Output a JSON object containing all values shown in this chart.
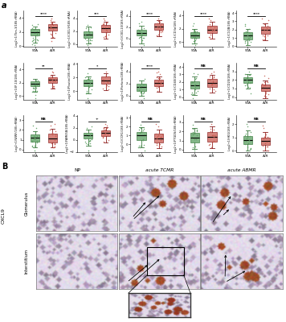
{
  "box_plots": [
    {
      "row": 0,
      "col": 0,
      "ylabel": "Log2+1(Tim-3/18S rRNA)",
      "sig": "****",
      "sta_q1": 1.5,
      "sta_med": 2.0,
      "sta_q3": 2.4,
      "sta_whislo": 0.5,
      "sta_whishi": 2.8,
      "sta_fliers_lo": [
        0.2,
        0.1
      ],
      "sta_fliers_hi": [
        3.0,
        3.1
      ],
      "ar_q1": 2.2,
      "ar_med": 2.7,
      "ar_q3": 3.1,
      "ar_whislo": 1.2,
      "ar_whishi": 3.5,
      "ar_fliers_lo": [
        0.7
      ],
      "ar_fliers_hi": [
        3.7,
        3.9
      ]
    },
    {
      "row": 0,
      "col": 1,
      "ylabel": "Log2+1(CXCL9/18S rRNA)",
      "sig": "***",
      "sta_q1": 1.0,
      "sta_med": 1.5,
      "sta_q3": 2.0,
      "sta_whislo": 0.1,
      "sta_whishi": 2.7,
      "sta_fliers_lo": [
        -0.2
      ],
      "sta_fliers_hi": [
        3.0
      ],
      "ar_q1": 1.8,
      "ar_med": 2.4,
      "ar_q3": 2.9,
      "ar_whislo": 0.8,
      "ar_whishi": 3.4,
      "ar_fliers_lo": [],
      "ar_fliers_hi": [
        3.7,
        3.9
      ]
    },
    {
      "row": 0,
      "col": 2,
      "ylabel": "Log2+1(CXCL10/18S rRNA)",
      "sig": "****",
      "sta_q1": 0.5,
      "sta_med": 1.0,
      "sta_q3": 1.6,
      "sta_whislo": -0.8,
      "sta_whishi": 2.2,
      "sta_fliers_lo": [
        -1.2
      ],
      "sta_fliers_hi": [
        2.7,
        3.0
      ],
      "ar_q1": 1.5,
      "ar_med": 2.1,
      "ar_q3": 2.7,
      "ar_whislo": 0.4,
      "ar_whishi": 3.2,
      "ar_fliers_lo": [],
      "ar_fliers_hi": [
        3.5
      ]
    },
    {
      "row": 0,
      "col": 3,
      "ylabel": "Log2+1(CD3e/18S rRNA)",
      "sig": "****",
      "sta_q1": 0.6,
      "sta_med": 1.0,
      "sta_q3": 1.5,
      "sta_whislo": -0.2,
      "sta_whishi": 2.0,
      "sta_fliers_lo": [
        -0.5
      ],
      "sta_fliers_hi": [
        2.4,
        2.8
      ],
      "ar_q1": 1.4,
      "ar_med": 1.9,
      "ar_q3": 2.4,
      "ar_whislo": 0.5,
      "ar_whishi": 3.0,
      "ar_fliers_lo": [],
      "ar_fliers_hi": [
        3.3,
        3.5
      ]
    },
    {
      "row": 0,
      "col": 4,
      "ylabel": "Log2+1(C1QB/18S rRNA)",
      "sig": "****",
      "sta_q1": 0.8,
      "sta_med": 1.3,
      "sta_q3": 1.7,
      "sta_whislo": 0.1,
      "sta_whishi": 2.1,
      "sta_fliers_lo": [],
      "sta_fliers_hi": [
        2.5,
        2.7
      ],
      "ar_q1": 1.5,
      "ar_med": 2.0,
      "ar_q3": 2.4,
      "ar_whislo": 0.7,
      "ar_whishi": 2.8,
      "ar_fliers_lo": [],
      "ar_fliers_hi": [
        3.1,
        3.3
      ]
    },
    {
      "row": 1,
      "col": 0,
      "ylabel": "Log2+1(IP-10/18S rRNA)",
      "sig": "**",
      "sta_q1": 1.5,
      "sta_med": 1.9,
      "sta_q3": 2.2,
      "sta_whislo": 0.6,
      "sta_whishi": 2.6,
      "sta_fliers_lo": [
        -0.3,
        0.2
      ],
      "sta_fliers_hi": [],
      "ar_q1": 2.0,
      "ar_med": 2.4,
      "ar_q3": 2.8,
      "ar_whislo": 1.1,
      "ar_whishi": 3.2,
      "ar_fliers_lo": [],
      "ar_fliers_hi": [
        3.5,
        3.7
      ]
    },
    {
      "row": 1,
      "col": 1,
      "ylabel": "Log2+1(Plastin/18S rRNA)",
      "sig": "*",
      "sta_q1": 0.7,
      "sta_med": 1.2,
      "sta_q3": 1.7,
      "sta_whislo": -0.3,
      "sta_whishi": 2.2,
      "sta_fliers_lo": [
        -1.0
      ],
      "sta_fliers_hi": [
        2.6
      ],
      "ar_q1": 1.1,
      "ar_med": 1.6,
      "ar_q3": 2.1,
      "ar_whislo": 0.2,
      "ar_whishi": 2.6,
      "ar_fliers_lo": [],
      "ar_fliers_hi": [
        2.9
      ]
    },
    {
      "row": 1,
      "col": 2,
      "ylabel": "Log2+1(Perforin/18S rRNA)",
      "sig": "****",
      "sta_q1": 0.8,
      "sta_med": 1.4,
      "sta_q3": 1.9,
      "sta_whislo": 0.0,
      "sta_whishi": 2.5,
      "sta_fliers_lo": [
        -0.4
      ],
      "sta_fliers_hi": [
        2.8
      ],
      "ar_q1": 1.6,
      "ar_med": 2.1,
      "ar_q3": 2.6,
      "ar_whislo": 0.6,
      "ar_whishi": 3.1,
      "ar_fliers_lo": [],
      "ar_fliers_hi": [
        3.5,
        3.8,
        4.0
      ]
    },
    {
      "row": 1,
      "col": 3,
      "ylabel": "Log2+1(CD40/18S rRNA)",
      "sig": "NS",
      "sta_q1": 1.1,
      "sta_med": 1.6,
      "sta_q3": 2.1,
      "sta_whislo": 0.3,
      "sta_whishi": 2.7,
      "sta_fliers_lo": [
        -0.1
      ],
      "sta_fliers_hi": [
        3.0,
        3.2
      ],
      "ar_q1": 1.4,
      "ar_med": 1.9,
      "ar_q3": 2.4,
      "ar_whislo": 0.6,
      "ar_whishi": 2.9,
      "ar_fliers_lo": [],
      "ar_fliers_hi": [
        3.2,
        3.4
      ]
    },
    {
      "row": 1,
      "col": 4,
      "ylabel": "Log2+1(CD20/18S rRNA)",
      "sig": "NS",
      "sta_q1": 1.7,
      "sta_med": 2.0,
      "sta_q3": 2.3,
      "sta_whislo": 1.0,
      "sta_whishi": 2.7,
      "sta_fliers_lo": [
        0.4
      ],
      "sta_fliers_hi": [
        3.0
      ],
      "ar_q1": 0.7,
      "ar_med": 1.1,
      "ar_q3": 1.5,
      "ar_whislo": -0.1,
      "ar_whishi": 1.9,
      "ar_fliers_lo": [],
      "ar_fliers_hi": [
        2.2,
        2.5
      ]
    },
    {
      "row": 2,
      "col": 0,
      "ylabel": "Log2+1(WWF/18S rRNA)",
      "sig": "NS",
      "sta_q1": 0.8,
      "sta_med": 1.2,
      "sta_q3": 1.5,
      "sta_whislo": 0.2,
      "sta_whishi": 1.9,
      "sta_fliers_lo": [
        -0.1
      ],
      "sta_fliers_hi": [
        2.2,
        2.4
      ],
      "ar_q1": 0.7,
      "ar_med": 1.1,
      "ar_q3": 1.6,
      "ar_whislo": 0.2,
      "ar_whishi": 2.1,
      "ar_fliers_lo": [],
      "ar_fliers_hi": [
        2.4,
        2.6
      ]
    },
    {
      "row": 2,
      "col": 1,
      "ylabel": "Log2+1(FAM65B/18S rRNA)",
      "sig": "+",
      "sta_q1": 0.2,
      "sta_med": 0.7,
      "sta_q3": 1.2,
      "sta_whislo": -1.0,
      "sta_whishi": 1.7,
      "sta_fliers_lo": [
        -1.8
      ],
      "sta_fliers_hi": [
        2.0,
        2.2
      ],
      "ar_q1": 0.6,
      "ar_med": 1.1,
      "ar_q3": 1.6,
      "ar_whislo": -0.4,
      "ar_whishi": 2.1,
      "ar_fliers_lo": [],
      "ar_fliers_hi": [
        2.4,
        2.6
      ]
    },
    {
      "row": 2,
      "col": 2,
      "ylabel": "Log2+1(CCR1/18S rRNA)",
      "sig": "NS",
      "sta_q1": 0.5,
      "sta_med": 1.0,
      "sta_q3": 1.4,
      "sta_whislo": -0.3,
      "sta_whishi": 1.9,
      "sta_fliers_lo": [
        -0.7
      ],
      "sta_fliers_hi": [
        2.2
      ],
      "ar_q1": 0.2,
      "ar_med": 0.7,
      "ar_q3": 1.2,
      "ar_whislo": -0.4,
      "ar_whishi": 1.7,
      "ar_fliers_lo": [],
      "ar_fliers_hi": [
        2.0,
        2.3
      ]
    },
    {
      "row": 2,
      "col": 3,
      "ylabel": "Log2+1(PTGDS/18S rRNA)",
      "sig": "NS",
      "sta_q1": 0.8,
      "sta_med": 1.3,
      "sta_q3": 1.8,
      "sta_whislo": 0.1,
      "sta_whishi": 2.4,
      "sta_fliers_lo": [
        -0.1
      ],
      "sta_fliers_hi": [
        2.7
      ],
      "ar_q1": 0.9,
      "ar_med": 1.4,
      "ar_q3": 1.9,
      "ar_whislo": 0.2,
      "ar_whishi": 2.5,
      "ar_fliers_lo": [],
      "ar_fliers_hi": [
        2.8
      ]
    },
    {
      "row": 2,
      "col": 4,
      "ylabel": "Log2+1(HKG/18S rRNA)",
      "sig": "NS",
      "sta_q1": 0.5,
      "sta_med": 0.8,
      "sta_q3": 1.1,
      "sta_whislo": 0.0,
      "sta_whishi": 1.5,
      "sta_fliers_lo": [],
      "sta_fliers_hi": [
        1.8,
        2.0
      ],
      "ar_q1": 0.4,
      "ar_med": 0.7,
      "ar_q3": 1.0,
      "ar_whislo": 0.0,
      "ar_whishi": 1.4,
      "ar_fliers_lo": [],
      "ar_fliers_hi": [
        1.7,
        1.9
      ]
    }
  ],
  "sta_fill": "#5a9e60",
  "sta_edge": "#3a7a3e",
  "ar_fill": "#c85a50",
  "ar_edge": "#8b2020",
  "xlabel_sta": "STA",
  "xlabel_ar": "A/R",
  "col_labels": [
    "NP",
    "acute TCMR",
    "acute ABMR"
  ],
  "row_labels": [
    "Glomerulus",
    "Interstitium"
  ],
  "cxcl9_label": "CXCL9"
}
